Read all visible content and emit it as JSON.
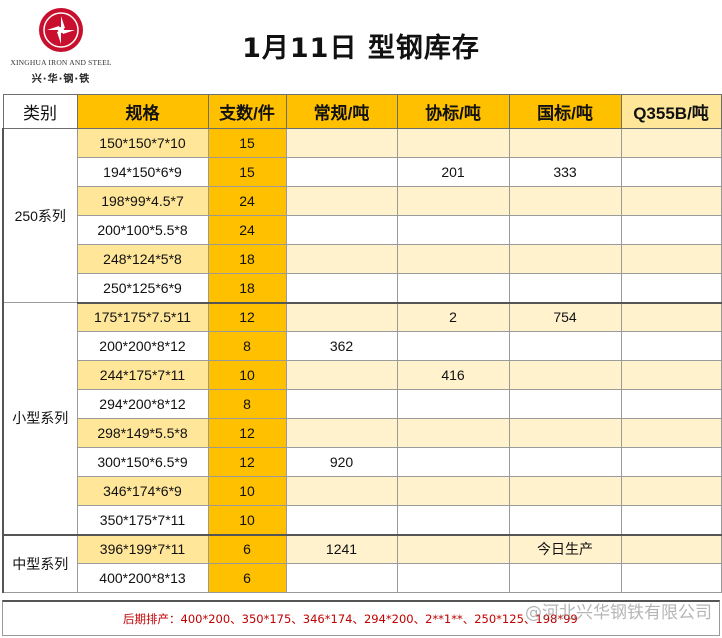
{
  "logo": {
    "company_en": "XINGHUA IRON AND STEEL",
    "company_cn": "兴·华·钢·铁",
    "mark_color": "#c8102e"
  },
  "title": "1月11日 型钢库存",
  "table": {
    "headers": [
      "类别",
      "规格",
      "支数/件",
      "常规/吨",
      "协标/吨",
      "国标/吨",
      "Q355B/吨"
    ],
    "groups": [
      {
        "category": "250系列",
        "rows": [
          {
            "spec": "150*150*7*10",
            "qty": "15",
            "regular": "",
            "assoc": "",
            "national": "",
            "q355b": ""
          },
          {
            "spec": "194*150*6*9",
            "qty": "15",
            "regular": "",
            "assoc": "201",
            "national": "333",
            "q355b": ""
          },
          {
            "spec": "198*99*4.5*7",
            "qty": "24",
            "regular": "",
            "assoc": "",
            "national": "",
            "q355b": ""
          },
          {
            "spec": "200*100*5.5*8",
            "qty": "24",
            "regular": "",
            "assoc": "",
            "national": "",
            "q355b": ""
          },
          {
            "spec": "248*124*5*8",
            "qty": "18",
            "regular": "",
            "assoc": "",
            "national": "",
            "q355b": ""
          },
          {
            "spec": "250*125*6*9",
            "qty": "18",
            "regular": "",
            "assoc": "",
            "national": "",
            "q355b": ""
          }
        ]
      },
      {
        "category": "小型系列",
        "rows": [
          {
            "spec": "175*175*7.5*11",
            "qty": "12",
            "regular": "",
            "assoc": "2",
            "national": "754",
            "q355b": ""
          },
          {
            "spec": "200*200*8*12",
            "qty": "8",
            "regular": "362",
            "assoc": "",
            "national": "",
            "q355b": ""
          },
          {
            "spec": "244*175*7*11",
            "qty": "10",
            "regular": "",
            "assoc": "416",
            "national": "",
            "q355b": ""
          },
          {
            "spec": "294*200*8*12",
            "qty": "8",
            "regular": "",
            "assoc": "",
            "national": "",
            "q355b": ""
          },
          {
            "spec": "298*149*5.5*8",
            "qty": "12",
            "regular": "",
            "assoc": "",
            "national": "",
            "q355b": ""
          },
          {
            "spec": "300*150*6.5*9",
            "qty": "12",
            "regular": "920",
            "assoc": "",
            "national": "",
            "q355b": ""
          },
          {
            "spec": "346*174*6*9",
            "qty": "10",
            "regular": "",
            "assoc": "",
            "national": "",
            "q355b": ""
          },
          {
            "spec": "350*175*7*11",
            "qty": "10",
            "regular": "",
            "assoc": "",
            "national": "",
            "q355b": ""
          }
        ]
      },
      {
        "category": "中型系列",
        "rows": [
          {
            "spec": "396*199*7*11",
            "qty": "6",
            "regular": "1241",
            "assoc": "",
            "national": "今日生产",
            "q355b": ""
          },
          {
            "spec": "400*200*8*13",
            "qty": "6",
            "regular": "",
            "assoc": "",
            "national": "",
            "q355b": ""
          }
        ]
      }
    ]
  },
  "footer_note": "后期排产：400*200、350*175、346*174、294*200、2**1**、250*125、198*99",
  "watermark": "@河北兴华钢铁有限公司",
  "colors": {
    "header_fill": "#FFC000",
    "alt_row_fill": "#FFF2CC",
    "note_red": "#c00000"
  }
}
